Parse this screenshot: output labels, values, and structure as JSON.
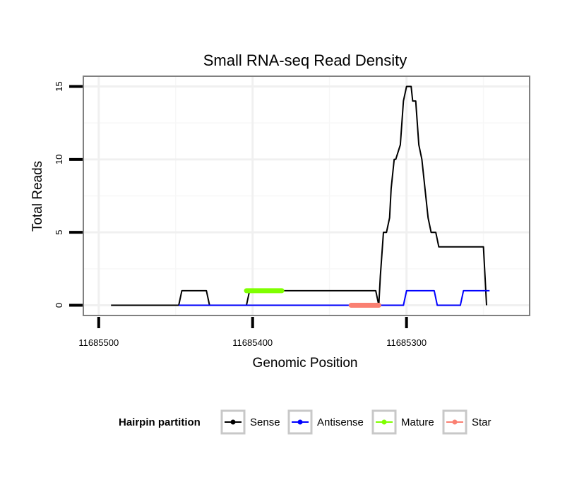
{
  "chart_data": {
    "type": "line",
    "title": "Small RNA-seq Read Density",
    "xlabel": "Genomic Position",
    "ylabel": "Total Reads",
    "x_reversed": true,
    "xlim": [
      11685510,
      11685220
    ],
    "ylim": [
      -0.7,
      15.7
    ],
    "x_ticks": [
      11685500,
      11685400,
      11685300
    ],
    "x_tick_labels": [
      "11685500",
      "11685400",
      "11685300"
    ],
    "y_ticks": [
      0,
      5,
      10,
      15
    ],
    "y_tick_labels": [
      "0",
      "5",
      "10",
      "15"
    ],
    "grid": true,
    "legend": {
      "title": "Hairpin partition",
      "placement": "bottom",
      "entries": [
        "Sense",
        "Antisense",
        "Mature",
        "Star"
      ]
    },
    "series": [
      {
        "name": "Sense",
        "color": "#000000",
        "x": [
          11685492,
          11685448,
          11685446,
          11685430,
          11685428,
          11685404,
          11685402,
          11685320,
          11685318,
          11685317,
          11685315,
          11685313,
          11685311,
          11685310,
          11685308,
          11685307,
          11685304,
          11685302,
          11685300,
          11685299,
          11685297,
          11685296,
          11685294,
          11685292,
          11685290,
          11685288,
          11685286,
          11685284,
          11685281,
          11685279,
          11685277,
          11685275,
          11685274,
          11685272,
          11685270,
          11685268,
          11685262,
          11685260,
          11685250,
          11685248
        ],
        "y": [
          0,
          0,
          1,
          1,
          0,
          0,
          1,
          1,
          0,
          2,
          5,
          5,
          6,
          8,
          10,
          10,
          11,
          14,
          15,
          15,
          15,
          14,
          14,
          11,
          10,
          8,
          6,
          5,
          5,
          4,
          4,
          4,
          4,
          4,
          4,
          4,
          4,
          4,
          4,
          0
        ]
      },
      {
        "name": "Antisense",
        "color": "#0000ff",
        "x": [
          11685448,
          11685430,
          11685428,
          11685404,
          11685402,
          11685302,
          11685300,
          11685282,
          11685280,
          11685265,
          11685263,
          11685246
        ],
        "y": [
          0,
          0,
          0,
          0,
          0,
          0,
          1,
          1,
          0,
          0,
          1,
          1
        ]
      },
      {
        "name": "Mature",
        "color": "#7fff00",
        "x": [
          11685404,
          11685381
        ],
        "y": [
          1,
          1
        ]
      },
      {
        "name": "Star",
        "color": "#fa8072",
        "x": [
          11685336,
          11685318
        ],
        "y": [
          0,
          0
        ]
      }
    ]
  }
}
